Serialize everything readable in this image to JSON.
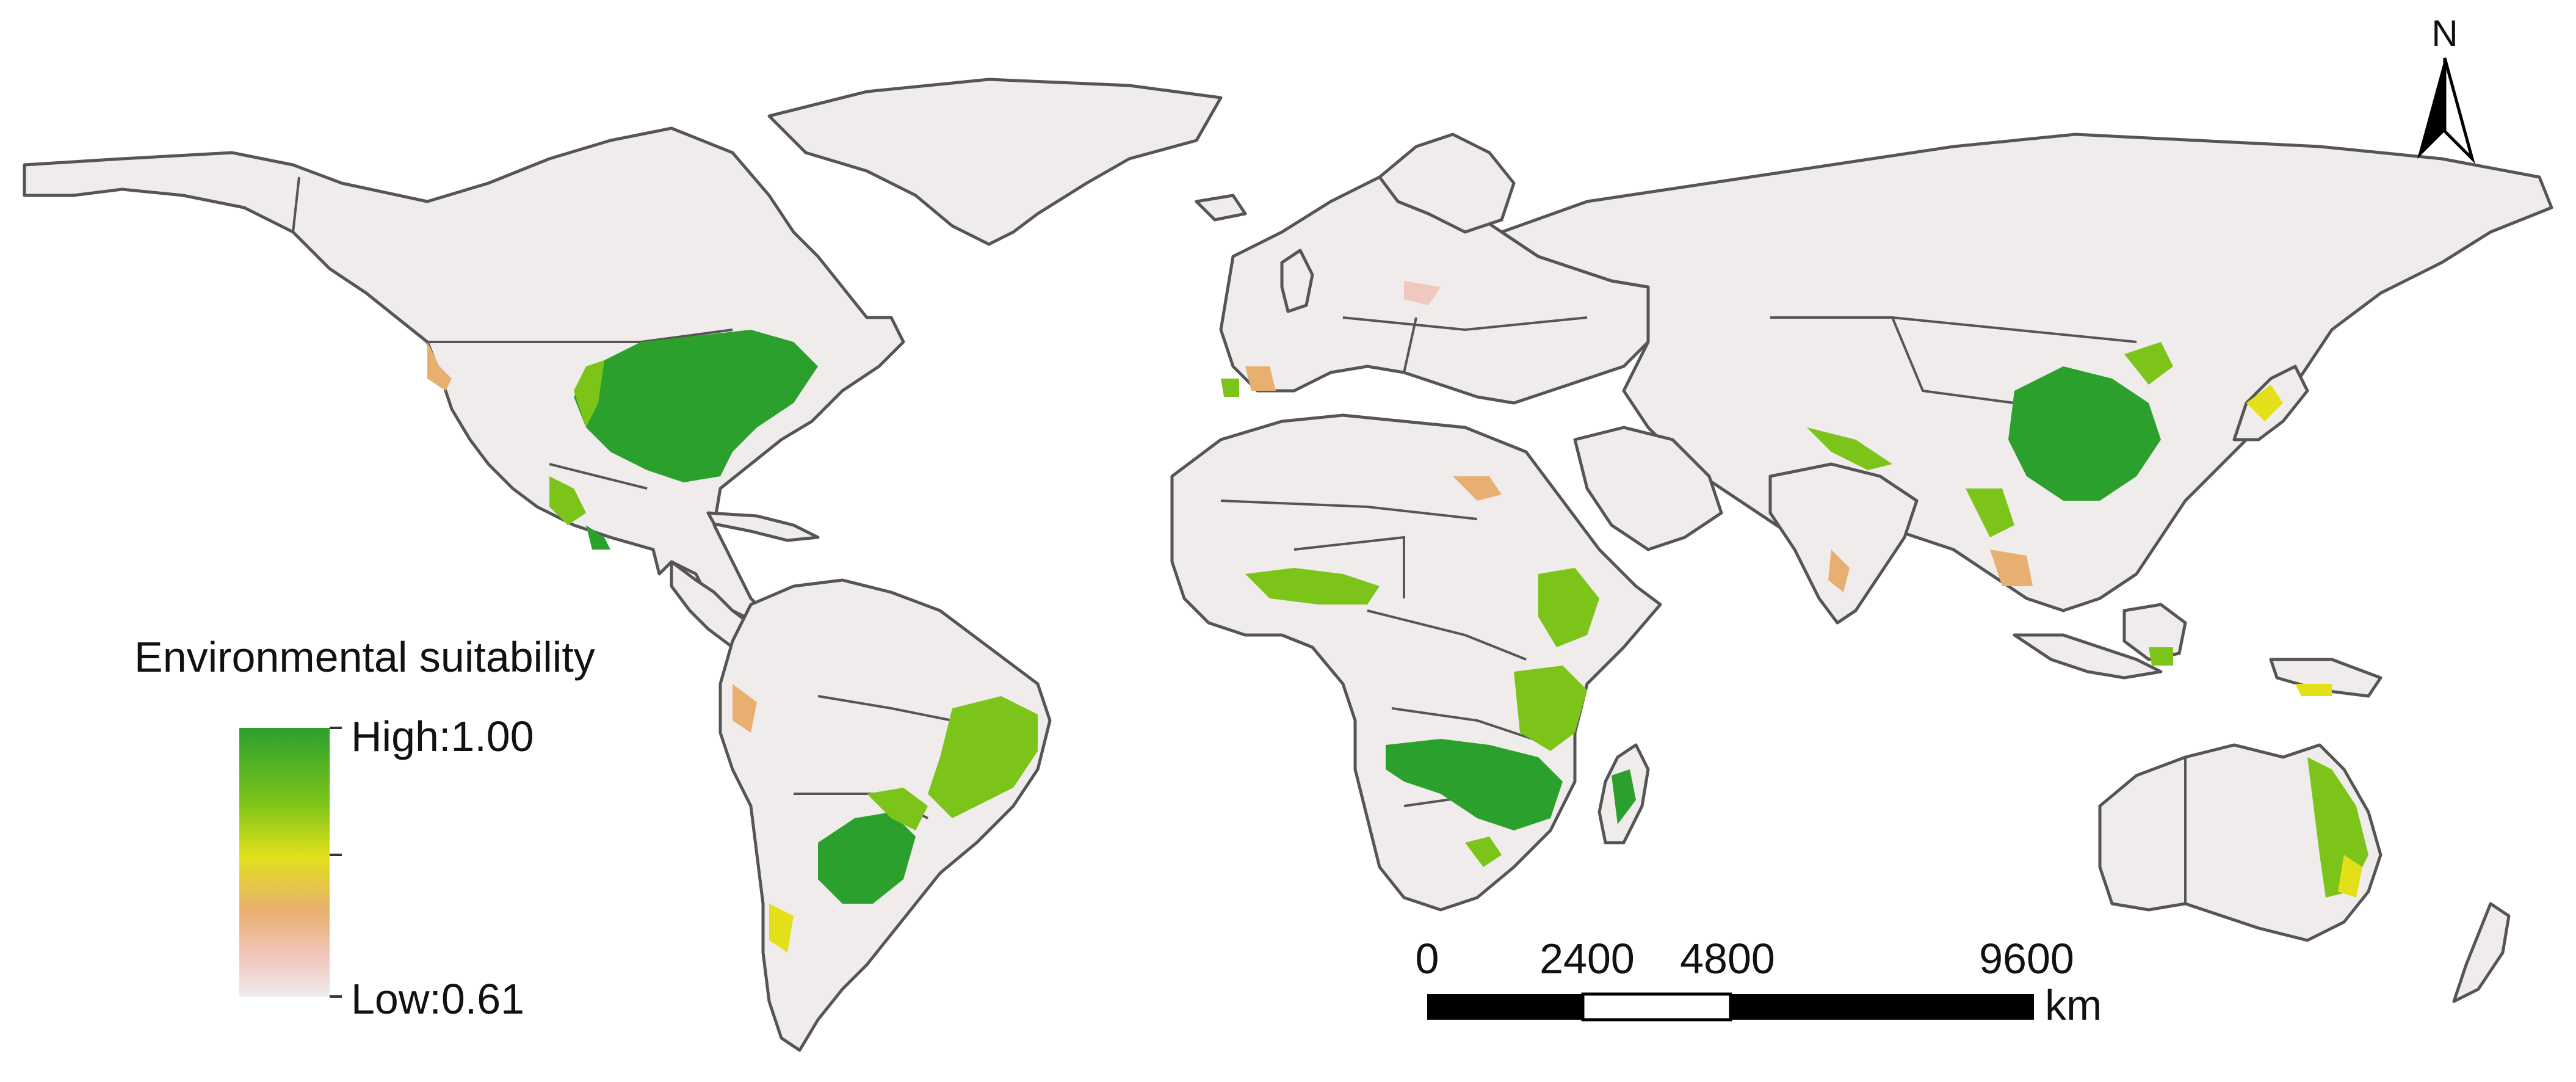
{
  "legend": {
    "title": "Environmental suitability",
    "high_label": "High:1.00",
    "low_label": "Low:0.61",
    "high_value": 1.0,
    "low_value": 0.61,
    "gradient_colors": [
      "#2ca02c",
      "#7cc41a",
      "#e3e01a",
      "#e8b070",
      "#f0c8c0",
      "#efeceb"
    ]
  },
  "scale_bar": {
    "ticks": [
      "0",
      "2400",
      "4800",
      "9600"
    ],
    "tick_values_km": [
      0,
      2400,
      4800,
      9600
    ],
    "unit": "km"
  },
  "north_arrow": {
    "label": "N",
    "icon": "north-arrow-icon"
  },
  "colors": {
    "land": "#efeceb",
    "border": "#555555",
    "high": "#2ca02c",
    "mid_high": "#7cc41a",
    "mid": "#e3e01a",
    "low_mid": "#e8b070",
    "low": "#f0c8c0"
  }
}
